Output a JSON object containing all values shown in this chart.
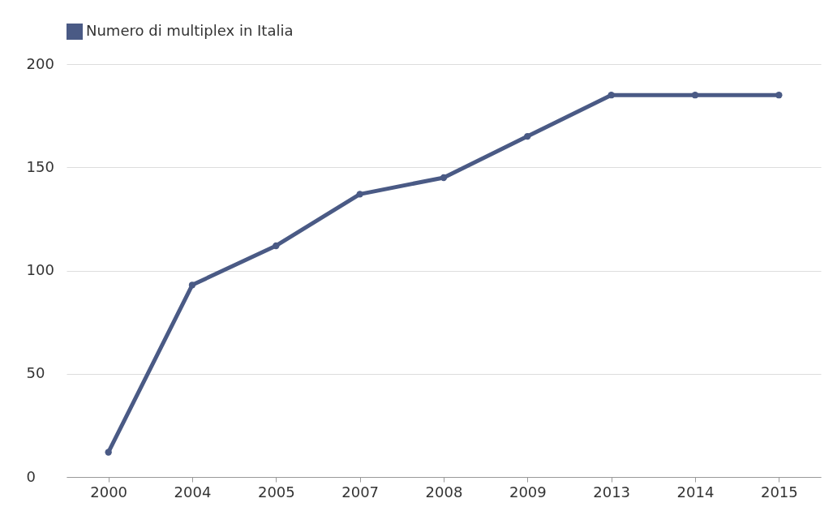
{
  "chart_data": {
    "type": "line",
    "categories": [
      "2000",
      "2004",
      "2005",
      "2007",
      "2008",
      "2009",
      "2013",
      "2014",
      "2015"
    ],
    "series": [
      {
        "name": "Numero di multiplex in Italia",
        "color": "#4a5a85",
        "values": [
          12,
          93,
          112,
          137,
          145,
          165,
          185,
          185,
          185
        ]
      }
    ],
    "ylim": [
      0,
      200
    ],
    "yticks": [
      0,
      50,
      100,
      150,
      200
    ],
    "grid": "y",
    "legend": "top",
    "marker": "circle",
    "line_style": "solid"
  }
}
